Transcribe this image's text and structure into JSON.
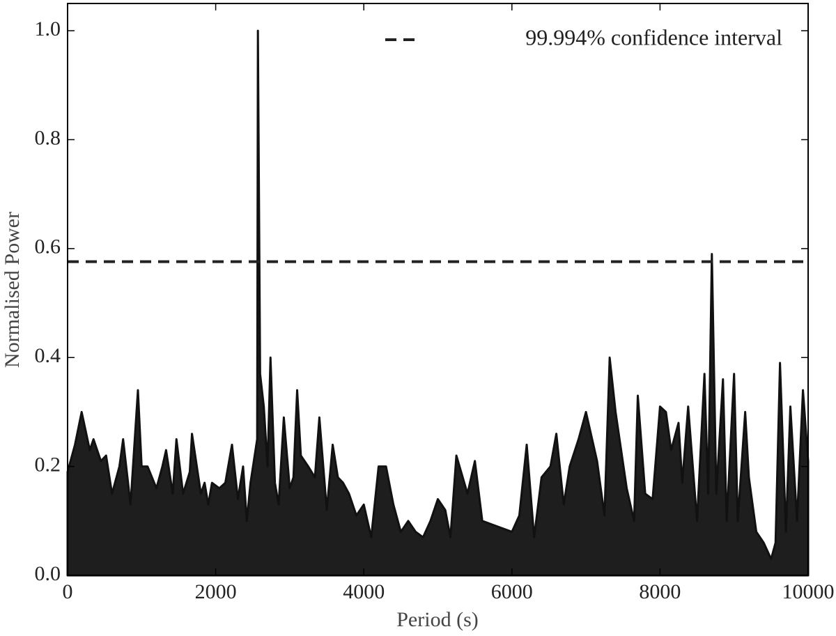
{
  "chart_data": {
    "type": "area",
    "x_label": "Period (s)",
    "y_label": "Normalised Power",
    "color": "#1e1e1e",
    "x": [
      0,
      100,
      190,
      300,
      350,
      450,
      520,
      600,
      700,
      750,
      850,
      950,
      1000,
      1080,
      1200,
      1280,
      1330,
      1420,
      1470,
      1560,
      1650,
      1680,
      1800,
      1850,
      1900,
      1950,
      2050,
      2130,
      2220,
      2300,
      2370,
      2420,
      2470,
      2560,
      2570,
      2600,
      2650,
      2700,
      2740,
      2800,
      2850,
      2920,
      3000,
      3050,
      3100,
      3150,
      3250,
      3340,
      3400,
      3500,
      3580,
      3650,
      3720,
      3800,
      3900,
      4000,
      4100,
      4200,
      4300,
      4400,
      4500,
      4600,
      4700,
      4800,
      4900,
      5000,
      5100,
      5170,
      5250,
      5400,
      5500,
      5600,
      5800,
      6000,
      6100,
      6200,
      6300,
      6400,
      6520,
      6600,
      6700,
      6780,
      6900,
      7000,
      7050,
      7150,
      7250,
      7320,
      7400,
      7550,
      7650,
      7700,
      7800,
      7900,
      8000,
      8080,
      8150,
      8250,
      8300,
      8380,
      8500,
      8600,
      8650,
      8700,
      8760,
      8850,
      8900,
      9000,
      9050,
      9150,
      9200,
      9300,
      9400,
      9500,
      9560,
      9620,
      9700,
      9760,
      9850,
      9930,
      10000
    ],
    "values": [
      0.19,
      0.24,
      0.3,
      0.23,
      0.25,
      0.21,
      0.22,
      0.15,
      0.2,
      0.25,
      0.13,
      0.34,
      0.2,
      0.2,
      0.16,
      0.2,
      0.23,
      0.15,
      0.25,
      0.15,
      0.19,
      0.26,
      0.15,
      0.17,
      0.13,
      0.17,
      0.16,
      0.17,
      0.24,
      0.14,
      0.2,
      0.1,
      0.17,
      0.25,
      1.0,
      0.37,
      0.31,
      0.2,
      0.4,
      0.17,
      0.13,
      0.29,
      0.16,
      0.18,
      0.34,
      0.22,
      0.2,
      0.18,
      0.29,
      0.12,
      0.24,
      0.18,
      0.17,
      0.15,
      0.11,
      0.13,
      0.07,
      0.2,
      0.2,
      0.13,
      0.08,
      0.1,
      0.08,
      0.07,
      0.1,
      0.14,
      0.12,
      0.07,
      0.22,
      0.15,
      0.21,
      0.1,
      0.09,
      0.08,
      0.11,
      0.24,
      0.07,
      0.18,
      0.2,
      0.26,
      0.13,
      0.2,
      0.25,
      0.3,
      0.27,
      0.21,
      0.11,
      0.4,
      0.3,
      0.16,
      0.1,
      0.33,
      0.15,
      0.14,
      0.31,
      0.3,
      0.23,
      0.28,
      0.17,
      0.31,
      0.1,
      0.37,
      0.15,
      0.59,
      0.15,
      0.36,
      0.1,
      0.37,
      0.1,
      0.3,
      0.18,
      0.08,
      0.06,
      0.03,
      0.06,
      0.39,
      0.08,
      0.31,
      0.1,
      0.34,
      0.21
    ],
    "confidence_line": {
      "value": 0.576,
      "name": "99.994% confidence interval",
      "color": "#222222"
    },
    "xlim": [
      0,
      10000
    ],
    "ylim": [
      0,
      1.05
    ],
    "xticks": [
      0,
      2000,
      4000,
      6000,
      8000,
      10000
    ],
    "yticks": [
      {
        "value": 0,
        "label": "0.0"
      },
      0.2,
      0.4,
      0.6,
      0.8,
      {
        "value": 1,
        "label": "1.0"
      }
    ],
    "legend": "upper right"
  }
}
